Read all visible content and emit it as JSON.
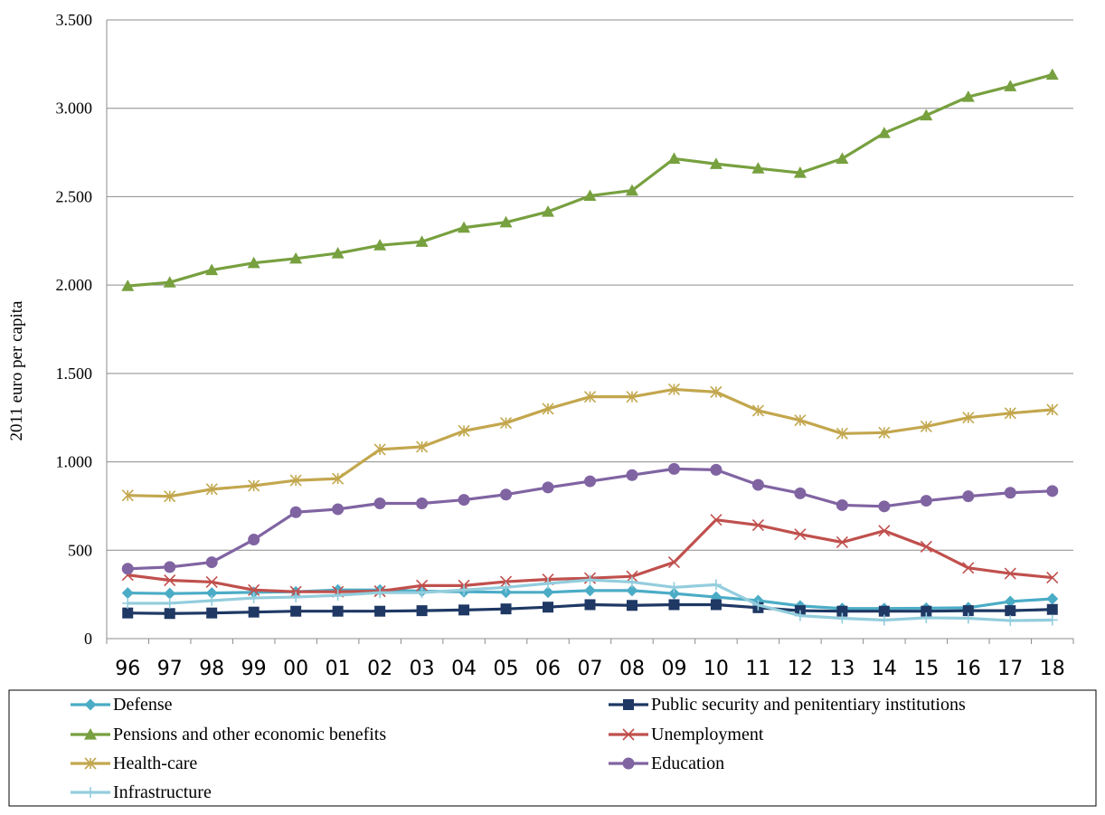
{
  "chart_data": {
    "type": "line",
    "title": "",
    "xlabel": "",
    "ylabel": "2011 euro per capita",
    "ylim": [
      0,
      3500
    ],
    "yticks": [
      0,
      500,
      1000,
      1500,
      2000,
      2500,
      3000,
      3500
    ],
    "ytick_labels": [
      "0",
      "500",
      "1.000",
      "1.500",
      "2.000",
      "2.500",
      "3.000",
      "3.500"
    ],
    "grid": "horizontal",
    "legend_position": "bottom",
    "categories": [
      "96",
      "97",
      "98",
      "99",
      "00",
      "01",
      "02",
      "03",
      "04",
      "05",
      "06",
      "07",
      "08",
      "09",
      "10",
      "11",
      "12",
      "13",
      "14",
      "15",
      "16",
      "17",
      "18"
    ],
    "series": [
      {
        "name": "Defense",
        "color": "#4BACC6",
        "marker": "diamond",
        "values": [
          258,
          255,
          258,
          262,
          265,
          275,
          275,
          268,
          265,
          262,
          262,
          272,
          272,
          255,
          235,
          215,
          185,
          170,
          170,
          172,
          175,
          210,
          225
        ]
      },
      {
        "name": "Public security and penitentiary institutions",
        "color": "#1F3864",
        "marker": "square",
        "values": [
          145,
          142,
          145,
          150,
          155,
          155,
          155,
          158,
          162,
          168,
          178,
          192,
          188,
          192,
          192,
          175,
          158,
          155,
          155,
          155,
          158,
          158,
          165
        ]
      },
      {
        "name": "Pensions and other economic benefits",
        "color": "#77A03F",
        "marker": "triangle",
        "values": [
          1995,
          2015,
          2085,
          2125,
          2150,
          2180,
          2225,
          2245,
          2325,
          2355,
          2415,
          2505,
          2535,
          2715,
          2685,
          2660,
          2635,
          2715,
          2860,
          2960,
          3065,
          3125,
          3190
        ]
      },
      {
        "name": "Unemployment",
        "color": "#C0504D",
        "marker": "x",
        "values": [
          360,
          330,
          320,
          275,
          265,
          265,
          268,
          300,
          300,
          322,
          335,
          342,
          352,
          432,
          672,
          642,
          590,
          545,
          610,
          520,
          400,
          368,
          345
        ]
      },
      {
        "name": "Health-care",
        "color": "#C3A74E",
        "marker": "asterisk",
        "values": [
          810,
          805,
          845,
          865,
          895,
          905,
          1070,
          1085,
          1175,
          1220,
          1300,
          1368,
          1368,
          1410,
          1395,
          1290,
          1235,
          1160,
          1165,
          1200,
          1250,
          1275,
          1295
        ]
      },
      {
        "name": "Education",
        "color": "#8064A2",
        "marker": "circle",
        "values": [
          395,
          405,
          432,
          560,
          715,
          732,
          765,
          765,
          785,
          815,
          855,
          890,
          925,
          960,
          955,
          870,
          822,
          755,
          748,
          780,
          805,
          825,
          835
        ]
      },
      {
        "name": "Infrastructure",
        "color": "#93CDDD",
        "marker": "plus",
        "values": [
          200,
          200,
          215,
          230,
          235,
          245,
          260,
          260,
          275,
          290,
          312,
          332,
          320,
          290,
          305,
          190,
          130,
          115,
          105,
          118,
          115,
          102,
          105
        ]
      }
    ]
  }
}
